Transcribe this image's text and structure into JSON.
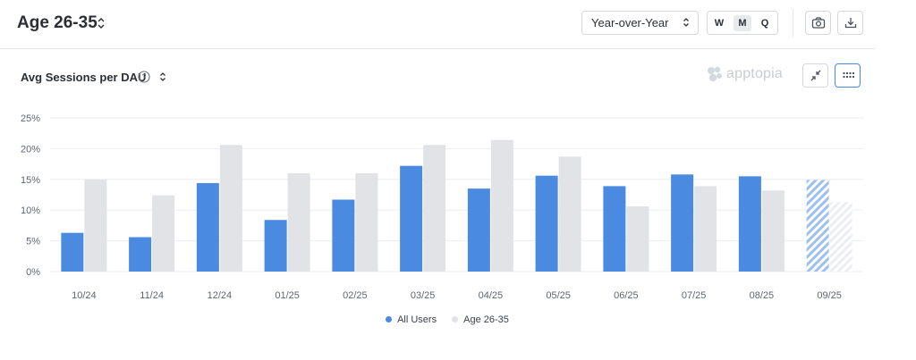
{
  "header": {
    "title": "Age 26-35",
    "period_select": "Year-over-Year",
    "granularity": [
      "W",
      "M",
      "Q"
    ],
    "granularity_selected": "M"
  },
  "icons": {
    "camera": "camera-icon",
    "download": "download-icon",
    "collapse": "collapse-icon",
    "grid": "grid-icon",
    "help": "help-icon"
  },
  "chart_header": {
    "title": "Avg Sessions per DAU",
    "brand": "apptopia"
  },
  "colors": {
    "all_users": "#4a8ae0",
    "age_group": "#e1e3e7",
    "gridline": "#eceef1",
    "tick_text": "#5f6571"
  },
  "legend": [
    {
      "name": "All Users",
      "color": "#4a8ae0"
    },
    {
      "name": "Age 26-35",
      "color": "#e1e3e7"
    }
  ],
  "chart_data": {
    "type": "bar",
    "title": "Avg Sessions per DAU",
    "categories": [
      "10/24",
      "11/24",
      "12/24",
      "01/25",
      "02/25",
      "03/25",
      "04/25",
      "05/25",
      "06/25",
      "07/25",
      "08/25",
      "09/25"
    ],
    "y_ticks": [
      "0%",
      "5%",
      "10%",
      "15%",
      "20%",
      "25%"
    ],
    "ylim": [
      0,
      25
    ],
    "grid": true,
    "legend_position": "bottom",
    "series": [
      {
        "name": "All Users",
        "values": [
          6.3,
          5.6,
          14.4,
          8.4,
          11.7,
          17.2,
          13.5,
          15.6,
          13.9,
          15.8,
          15.5,
          14.9
        ]
      },
      {
        "name": "Age 26-35",
        "values": [
          15.0,
          12.4,
          20.6,
          16.0,
          16.0,
          20.6,
          21.4,
          18.7,
          10.6,
          13.9,
          13.2,
          11.3
        ]
      }
    ],
    "partial_period": "09/25"
  }
}
